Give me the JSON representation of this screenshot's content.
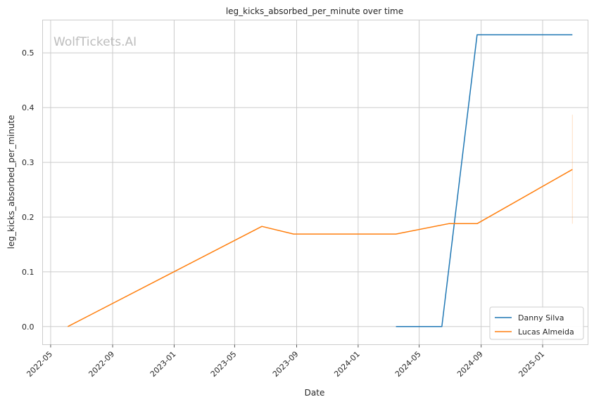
{
  "chart_data": {
    "type": "line",
    "title": "leg_kicks_absorbed_per_minute over time",
    "xlabel": "Date",
    "ylabel": "leg_kicks_absorbed_per_minute",
    "watermark": "WolfTickets.AI",
    "x_ticks": [
      "2022-05",
      "2022-09",
      "2023-01",
      "2023-05",
      "2023-09",
      "2024-01",
      "2024-05",
      "2024-09",
      "2025-01"
    ],
    "y_ticks": [
      "0.0",
      "0.1",
      "0.2",
      "0.3",
      "0.4",
      "0.5"
    ],
    "xlim": [
      "2022-04-15",
      "2025-04-01"
    ],
    "ylim": [
      -0.033,
      0.56
    ],
    "grid": true,
    "legend_position": "lower-right",
    "series": [
      {
        "name": "Danny Silva",
        "color": "#1f77b4",
        "points": [
          {
            "x": "2024-03-16",
            "y": 0.0
          },
          {
            "x": "2024-06-15",
            "y": 0.0
          },
          {
            "x": "2024-08-24",
            "y": 0.533
          },
          {
            "x": "2025-03-01",
            "y": 0.533
          }
        ]
      },
      {
        "name": "Lucas Almeida",
        "color": "#ff7f0e",
        "points": [
          {
            "x": "2022-06-04",
            "y": 0.0
          },
          {
            "x": "2023-06-24",
            "y": 0.183
          },
          {
            "x": "2023-08-26",
            "y": 0.169
          },
          {
            "x": "2024-03-16",
            "y": 0.169
          },
          {
            "x": "2024-06-29",
            "y": 0.188
          },
          {
            "x": "2024-08-24",
            "y": 0.188
          },
          {
            "x": "2025-03-01",
            "y": 0.287
          }
        ],
        "band": {
          "x": "2025-03-01",
          "low": 0.188,
          "high": 0.387
        }
      }
    ]
  }
}
